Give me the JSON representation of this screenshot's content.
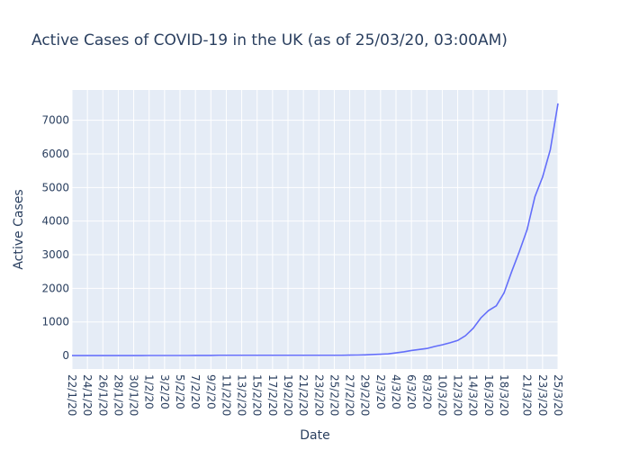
{
  "chart_data": {
    "type": "line",
    "title": "Active Cases of COVID-19 in the UK (as of 25/03/20, 03:00AM)",
    "xlabel": "Date",
    "ylabel": "Active Cases",
    "ylim": [
      -400,
      7900
    ],
    "yticks": [
      0,
      1000,
      2000,
      3000,
      4000,
      5000,
      6000,
      7000
    ],
    "grid": true,
    "background": "#e5ecf6",
    "line_color": "#636efa",
    "x": [
      "22/1/20",
      "23/1/20",
      "24/1/20",
      "25/1/20",
      "26/1/20",
      "27/1/20",
      "28/1/20",
      "29/1/20",
      "30/1/20",
      "31/1/20",
      "1/2/20",
      "2/2/20",
      "3/2/20",
      "4/2/20",
      "5/2/20",
      "6/2/20",
      "7/2/20",
      "8/2/20",
      "9/2/20",
      "10/2/20",
      "11/2/20",
      "12/2/20",
      "13/2/20",
      "14/2/20",
      "15/2/20",
      "16/2/20",
      "17/2/20",
      "18/2/20",
      "19/2/20",
      "20/2/20",
      "21/2/20",
      "22/2/20",
      "23/2/20",
      "24/2/20",
      "25/2/20",
      "26/2/20",
      "27/2/20",
      "28/2/20",
      "29/2/20",
      "1/3/20",
      "2/3/20",
      "3/3/20",
      "4/3/20",
      "5/3/20",
      "6/3/20",
      "7/3/20",
      "8/3/20",
      "9/3/20",
      "10/3/20",
      "11/3/20",
      "12/3/20",
      "13/3/20",
      "14/3/20",
      "15/3/20",
      "16/3/20",
      "17/3/20",
      "18/3/20",
      "19/3/20",
      "20/3/20",
      "21/3/20",
      "22/3/20",
      "23/3/20",
      "24/3/20",
      "25/3/20"
    ],
    "values": [
      0,
      0,
      0,
      0,
      0,
      0,
      0,
      0,
      0,
      0,
      2,
      2,
      2,
      2,
      2,
      2,
      3,
      3,
      3,
      8,
      8,
      8,
      8,
      8,
      8,
      8,
      8,
      8,
      8,
      8,
      8,
      8,
      8,
      8,
      8,
      8,
      12,
      15,
      20,
      30,
      40,
      50,
      80,
      110,
      150,
      180,
      210,
      270,
      320,
      380,
      450,
      590,
      810,
      1120,
      1340,
      1480,
      1860,
      2500,
      3100,
      3750,
      4720,
      5310,
      6120,
      7500
    ],
    "xticks": [
      "22/1/20",
      "24/1/20",
      "26/1/20",
      "28/1/20",
      "30/1/20",
      "1/2/20",
      "3/2/20",
      "5/2/20",
      "7/2/20",
      "9/2/20",
      "11/2/20",
      "13/2/20",
      "15/2/20",
      "17/2/20",
      "19/2/20",
      "21/2/20",
      "23/2/20",
      "25/2/20",
      "27/2/20",
      "29/2/20",
      "2/3/20",
      "4/3/20",
      "6/3/20",
      "8/3/20",
      "10/3/20",
      "12/3/20",
      "14/3/20",
      "16/3/20",
      "18/3/20",
      "21/3/20",
      "23/3/20",
      "25/3/20"
    ]
  }
}
